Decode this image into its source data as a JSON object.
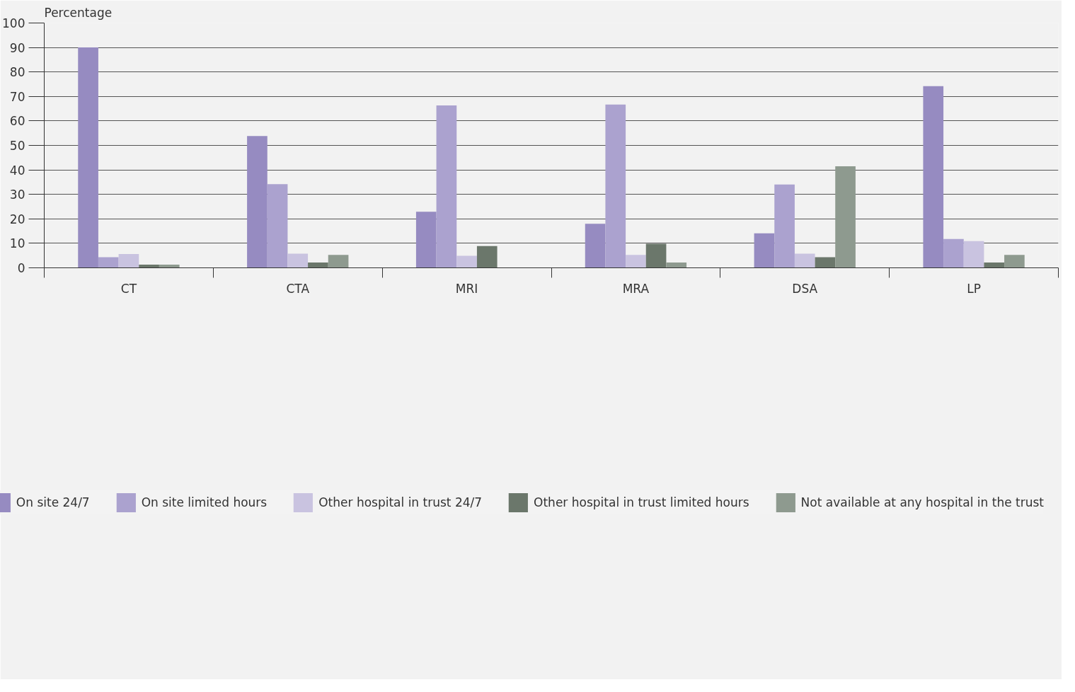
{
  "chart_data": {
    "type": "bar",
    "ylabel": "Percentage",
    "categories": [
      "CT",
      "CTA",
      "MRI",
      "MRA",
      "DSA",
      "LP"
    ],
    "series": [
      {
        "name": "On site 24/7",
        "color": "#968bc1",
        "values": [
          90,
          53.8,
          22.9,
          18,
          14.1,
          74.2
        ]
      },
      {
        "name": "On site limited hours",
        "color": "#aba2cf",
        "values": [
          4.3,
          34.2,
          66.3,
          66.7,
          34,
          11.8
        ]
      },
      {
        "name": "Other hospital in trust 24/7",
        "color": "#c9c3e0",
        "values": [
          5.6,
          5.8,
          4.9,
          5.3,
          5.8,
          10.9
        ]
      },
      {
        "name": "Other hospital in trust limited hours",
        "color": "#6b776b",
        "values": [
          1.3,
          2.2,
          8.9,
          9.8,
          4.3,
          2.2
        ]
      },
      {
        "name": "Not available at any hospital in the trust",
        "color": "#8e9a8f",
        "values": [
          1.3,
          5.3,
          0,
          2.2,
          41.5,
          5.3
        ]
      }
    ],
    "ylim": [
      0,
      100
    ],
    "yticks": [
      0,
      10,
      20,
      30,
      40,
      50,
      60,
      70,
      80,
      90,
      100
    ],
    "grid": "y",
    "legend": "bottom"
  }
}
